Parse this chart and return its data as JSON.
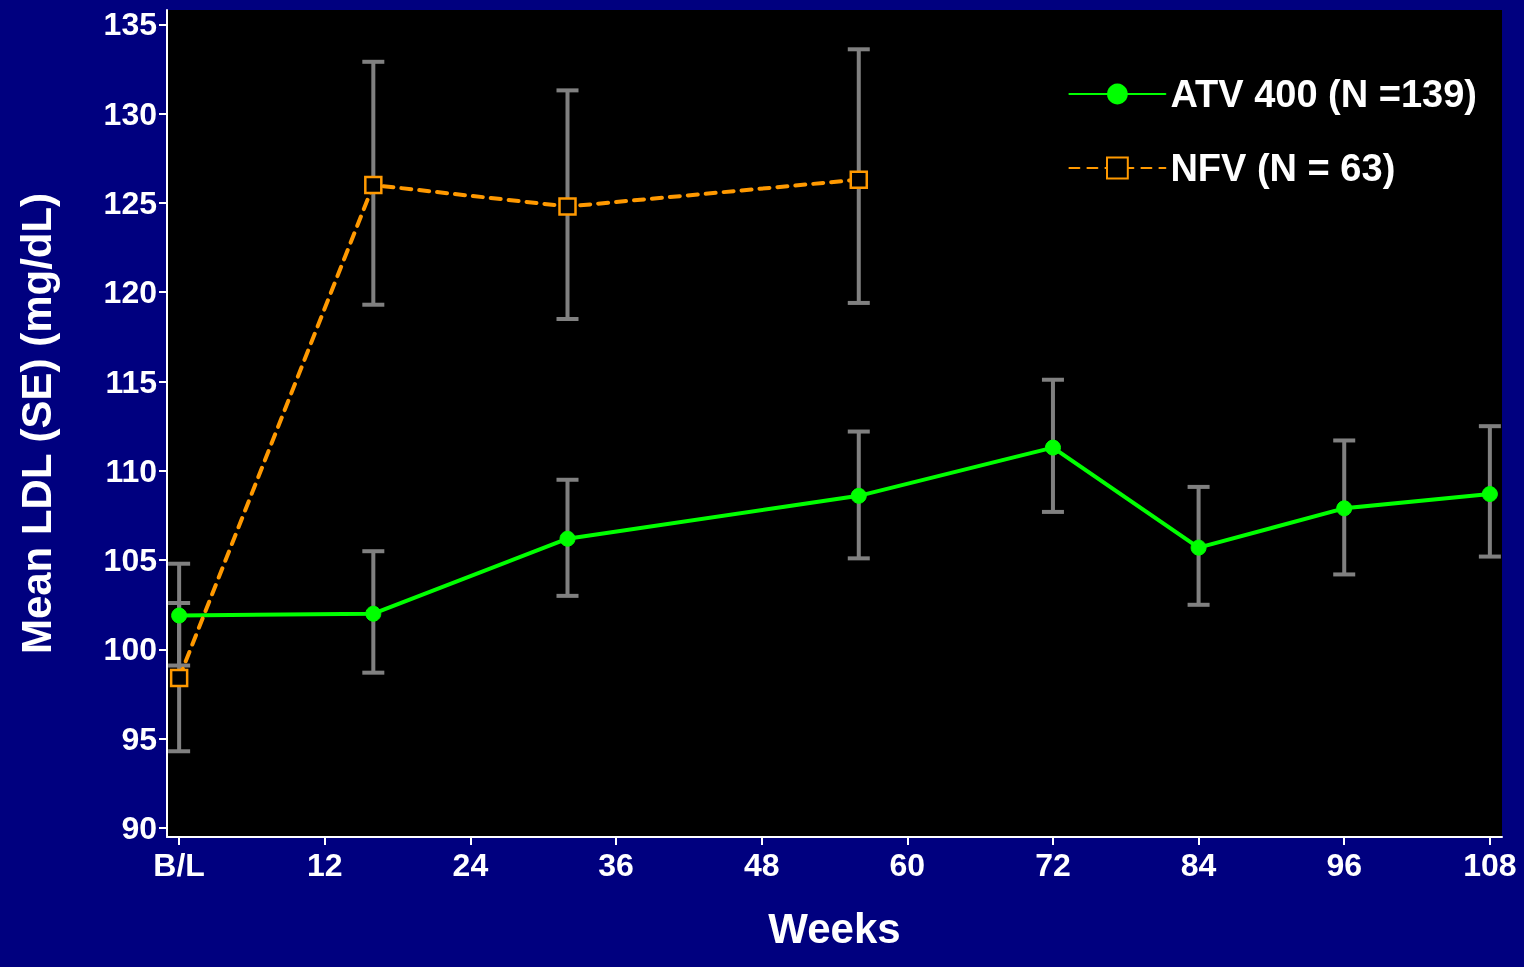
{
  "chart_data": {
    "type": "line",
    "xlabel": "Weeks",
    "ylabel": "Mean LDL (SE) (mg/dL)",
    "xlim": [
      -1,
      109
    ],
    "xticks": [
      {
        "value": 0,
        "label": "B/L"
      },
      12,
      24,
      36,
      48,
      60,
      72,
      84,
      96,
      108
    ],
    "ylim": [
      89.5,
      135.8
    ],
    "yticks": [
      90,
      95,
      100,
      105,
      110,
      115,
      120,
      125,
      130,
      135
    ],
    "grid": false,
    "legend": "top right",
    "series": [
      {
        "name": "ATV 400 (N =139)",
        "color": "#00ff00",
        "marker": "circle",
        "line_style": "solid",
        "x": [
          0,
          16,
          32,
          56,
          72,
          84,
          96,
          108
        ],
        "values": [
          101.9,
          102.0,
          106.2,
          108.6,
          111.3,
          105.7,
          107.9,
          108.7
        ],
        "errors": [
          [
            99.1,
            104.8
          ],
          [
            98.7,
            105.5
          ],
          [
            103.0,
            109.5
          ],
          [
            105.1,
            112.2
          ],
          [
            107.7,
            115.1
          ],
          [
            102.5,
            109.1
          ],
          [
            104.2,
            111.7
          ],
          [
            105.2,
            112.5
          ]
        ]
      },
      {
        "name": "NFV (N = 63)",
        "color": "#ff9900",
        "marker": "square",
        "line_style": "dashed",
        "x": [
          0,
          16,
          32,
          56
        ],
        "values": [
          98.4,
          126.0,
          124.8,
          126.3
        ],
        "errors": [
          [
            94.3,
            102.6
          ],
          [
            119.3,
            132.9
          ],
          [
            118.5,
            131.3
          ],
          [
            119.4,
            133.6
          ]
        ]
      }
    ]
  }
}
